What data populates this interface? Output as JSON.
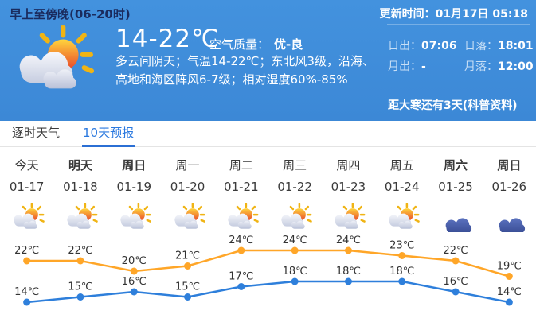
{
  "header": {
    "period_title": "早上至傍晚(06-20时)",
    "update_time": "更新时间：01月17日 05:18",
    "temp_range": "14-22℃",
    "air_quality_label": "空气质量：",
    "air_quality_value": "优-良",
    "description": "多云间阴天；气温14-22℃；东北风3级，沿海、高地和海区阵风6-7级；相对湿度60%-85%",
    "current_icon": "partly-cloudy",
    "sun_moon": {
      "sunrise_label": "日出：",
      "sunrise": "07:06",
      "sunset_label": "日落：",
      "sunset": "18:01",
      "moonrise_label": "月出：",
      "moonrise": "-",
      "moonset_label": "月落：",
      "moonset": "12:00"
    },
    "solar_term_note": "距大寒还有3天(科普资料)"
  },
  "tabs": [
    {
      "label": "逐时天气",
      "active": false
    },
    {
      "label": "10天预报",
      "active": true
    }
  ],
  "colors": {
    "header_bg": "#3C88D6",
    "accent_blue": "#2B6FD4",
    "high_line": "#FFA628",
    "low_line": "#2E7FDB"
  },
  "forecast": {
    "days": [
      {
        "day": "今天",
        "date": "01-17",
        "icon": "partly-cloudy",
        "bold": false
      },
      {
        "day": "明天",
        "date": "01-18",
        "icon": "partly-cloudy",
        "bold": true
      },
      {
        "day": "周日",
        "date": "01-19",
        "icon": "partly-cloudy",
        "bold": true
      },
      {
        "day": "周一",
        "date": "01-20",
        "icon": "partly-cloudy",
        "bold": false
      },
      {
        "day": "周二",
        "date": "01-21",
        "icon": "partly-cloudy",
        "bold": false
      },
      {
        "day": "周三",
        "date": "01-22",
        "icon": "partly-cloudy",
        "bold": false
      },
      {
        "day": "周四",
        "date": "01-23",
        "icon": "partly-cloudy",
        "bold": false
      },
      {
        "day": "周五",
        "date": "01-24",
        "icon": "partly-cloudy",
        "bold": false
      },
      {
        "day": "周六",
        "date": "01-25",
        "icon": "cloudy",
        "bold": true
      },
      {
        "day": "周日",
        "date": "01-26",
        "icon": "cloudy",
        "bold": true
      }
    ]
  },
  "chart_data": {
    "type": "line",
    "categories": [
      "01-17",
      "01-18",
      "01-19",
      "01-20",
      "01-21",
      "01-22",
      "01-23",
      "01-24",
      "01-25",
      "01-26"
    ],
    "series": [
      {
        "name": "high-temp",
        "color": "#FFA628",
        "unit": "℃",
        "values": [
          22,
          22,
          20,
          21,
          24,
          24,
          24,
          23,
          22,
          19
        ]
      },
      {
        "name": "low-temp",
        "color": "#2E7FDB",
        "unit": "℃",
        "values": [
          14,
          15,
          16,
          15,
          17,
          18,
          18,
          18,
          16,
          14
        ]
      }
    ],
    "ylim": [
      13,
      25
    ],
    "grid": false,
    "legend": "none",
    "point_labels": true
  }
}
